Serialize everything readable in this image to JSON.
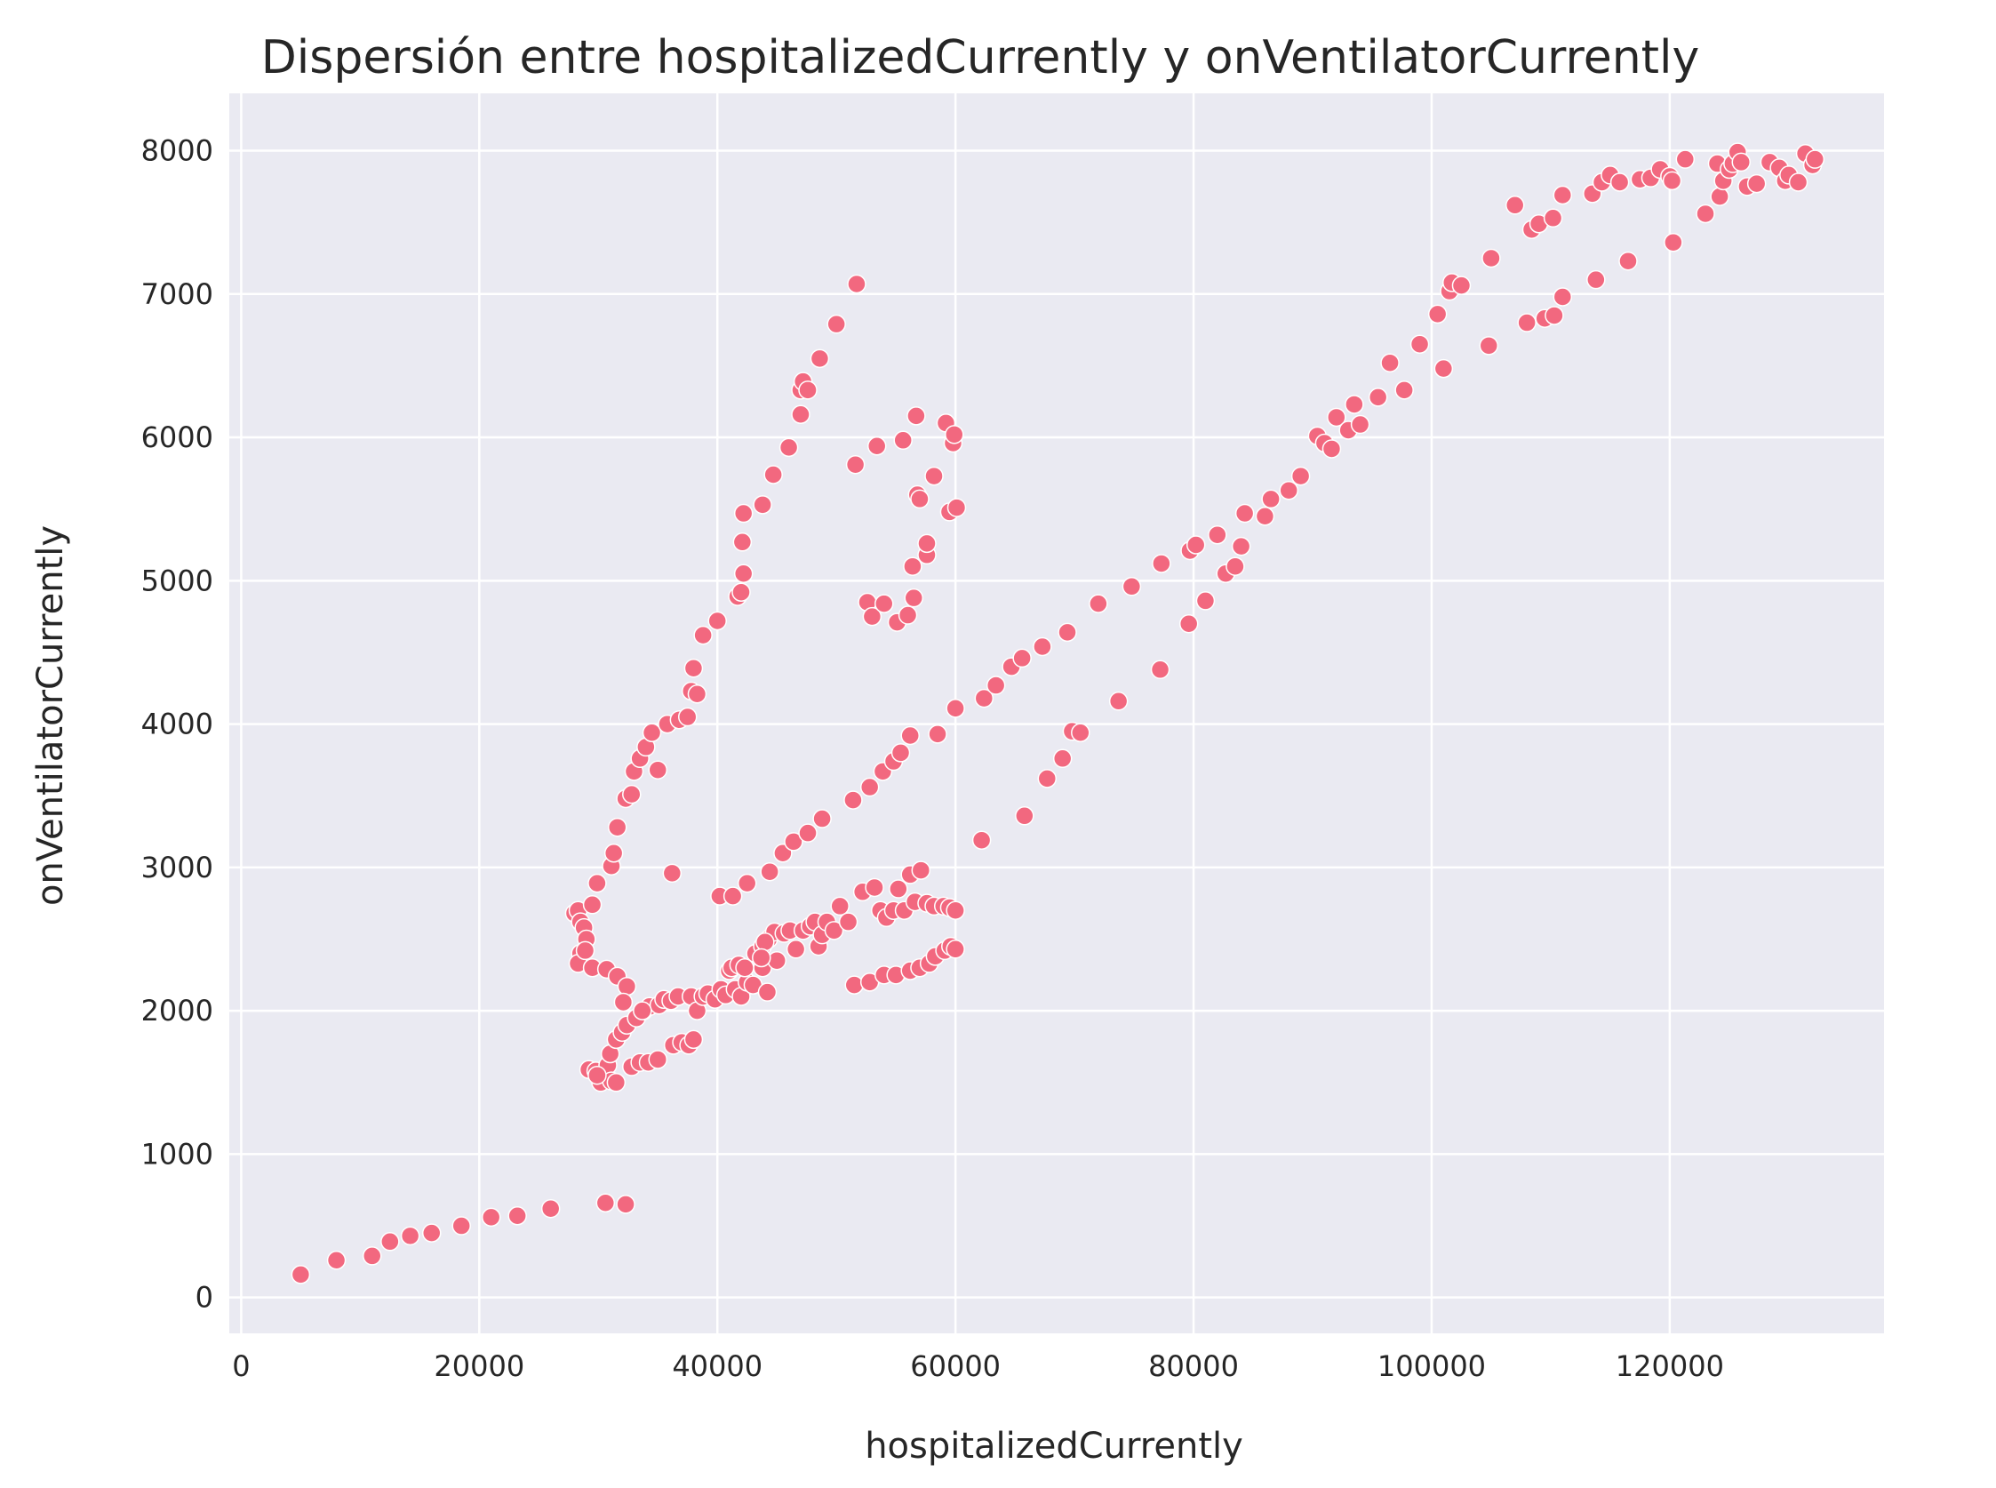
{
  "chart_data": {
    "type": "scatter",
    "title": "Dispersión entre hospitalizedCurrently y onVentilatorCurrently",
    "xlabel": "hospitalizedCurrently",
    "ylabel": "onVentilatorCurrently",
    "xlim": [
      -1000,
      138000
    ],
    "ylim": [
      -250,
      8400
    ],
    "xticks": [
      0,
      20000,
      40000,
      60000,
      80000,
      100000,
      120000
    ],
    "yticks": [
      0,
      1000,
      2000,
      3000,
      4000,
      5000,
      6000,
      7000,
      8000
    ],
    "grid": true,
    "colors": {
      "background": "#eaeaf2",
      "marker": "#f2687f",
      "grid": "#ffffff"
    },
    "points": [
      [
        5000,
        160
      ],
      [
        8000,
        260
      ],
      [
        11000,
        290
      ],
      [
        12500,
        390
      ],
      [
        14200,
        430
      ],
      [
        16000,
        450
      ],
      [
        18500,
        500
      ],
      [
        21000,
        560
      ],
      [
        23200,
        570
      ],
      [
        26000,
        620
      ],
      [
        30600,
        660
      ],
      [
        32300,
        650
      ],
      [
        29200,
        1590
      ],
      [
        29800,
        1580
      ],
      [
        30200,
        1500
      ],
      [
        30500,
        1560
      ],
      [
        30800,
        1620
      ],
      [
        31100,
        1510
      ],
      [
        31500,
        1500
      ],
      [
        29900,
        1550
      ],
      [
        31000,
        1700
      ],
      [
        31500,
        1800
      ],
      [
        32000,
        1850
      ],
      [
        32400,
        1900
      ],
      [
        32800,
        1610
      ],
      [
        33500,
        1640
      ],
      [
        34200,
        1640
      ],
      [
        35000,
        1660
      ],
      [
        33200,
        1950
      ],
      [
        33800,
        2000
      ],
      [
        34300,
        2030
      ],
      [
        35100,
        2040
      ],
      [
        35500,
        2080
      ],
      [
        36100,
        2070
      ],
      [
        36700,
        2100
      ],
      [
        36300,
        1760
      ],
      [
        37000,
        1780
      ],
      [
        37600,
        1760
      ],
      [
        38000,
        1800
      ],
      [
        37800,
        2100
      ],
      [
        38300,
        2000
      ],
      [
        38800,
        2100
      ],
      [
        39200,
        2120
      ],
      [
        39800,
        2080
      ],
      [
        40300,
        2150
      ],
      [
        40700,
        2110
      ],
      [
        41000,
        2280
      ],
      [
        41500,
        2150
      ],
      [
        42000,
        2100
      ],
      [
        42500,
        2200
      ],
      [
        43000,
        2180
      ],
      [
        43800,
        2300
      ],
      [
        44200,
        2130
      ],
      [
        41200,
        2300
      ],
      [
        41800,
        2320
      ],
      [
        42300,
        2300
      ],
      [
        43200,
        2400
      ],
      [
        43800,
        2450
      ],
      [
        44300,
        2500
      ],
      [
        44800,
        2550
      ],
      [
        44000,
        2480
      ],
      [
        45000,
        2350
      ],
      [
        45600,
        2540
      ],
      [
        46100,
        2560
      ],
      [
        46600,
        2430
      ],
      [
        47200,
        2560
      ],
      [
        47800,
        2590
      ],
      [
        48200,
        2620
      ],
      [
        48500,
        2450
      ],
      [
        48800,
        2530
      ],
      [
        49200,
        2620
      ],
      [
        49800,
        2560
      ],
      [
        50300,
        2730
      ],
      [
        51000,
        2620
      ],
      [
        51500,
        2180
      ],
      [
        52200,
        2830
      ],
      [
        52800,
        2200
      ],
      [
        53200,
        2860
      ],
      [
        53700,
        2700
      ],
      [
        54200,
        2650
      ],
      [
        54800,
        2700
      ],
      [
        55200,
        2850
      ],
      [
        55700,
        2700
      ],
      [
        56200,
        2950
      ],
      [
        56600,
        2760
      ],
      [
        57100,
        2980
      ],
      [
        57600,
        2750
      ],
      [
        58200,
        2730
      ],
      [
        59000,
        2730
      ],
      [
        59500,
        2720
      ],
      [
        60000,
        2700
      ],
      [
        54000,
        2250
      ],
      [
        55000,
        2250
      ],
      [
        56200,
        2280
      ],
      [
        57000,
        2300
      ],
      [
        57800,
        2330
      ],
      [
        58300,
        2380
      ],
      [
        59100,
        2420
      ],
      [
        59600,
        2450
      ],
      [
        60000,
        2430
      ],
      [
        28000,
        2680
      ],
      [
        28300,
        2700
      ],
      [
        28500,
        2620
      ],
      [
        28800,
        2580
      ],
      [
        28500,
        2400
      ],
      [
        28300,
        2330
      ],
      [
        29000,
        2500
      ],
      [
        28900,
        2420
      ],
      [
        29500,
        2300
      ],
      [
        29500,
        2740
      ],
      [
        29900,
        2890
      ],
      [
        30700,
        2290
      ],
      [
        31600,
        2240
      ],
      [
        32400,
        2170
      ],
      [
        32100,
        2060
      ],
      [
        33700,
        2000
      ],
      [
        31100,
        3010
      ],
      [
        31300,
        3100
      ],
      [
        31600,
        3280
      ],
      [
        32300,
        3480
      ],
      [
        32800,
        3510
      ],
      [
        33000,
        3670
      ],
      [
        33500,
        3760
      ],
      [
        34000,
        3840
      ],
      [
        34500,
        3940
      ],
      [
        35000,
        3680
      ],
      [
        35800,
        4000
      ],
      [
        36200,
        2960
      ],
      [
        36800,
        4030
      ],
      [
        37500,
        4050
      ],
      [
        37800,
        4230
      ],
      [
        38000,
        4390
      ],
      [
        38300,
        4210
      ],
      [
        38800,
        4620
      ],
      [
        40000,
        4720
      ],
      [
        40200,
        2800
      ],
      [
        41300,
        2800
      ],
      [
        41700,
        4890
      ],
      [
        42000,
        4920
      ],
      [
        42200,
        5050
      ],
      [
        42100,
        5270
      ],
      [
        42200,
        5470
      ],
      [
        42500,
        2890
      ],
      [
        43800,
        5530
      ],
      [
        43700,
        2370
      ],
      [
        44400,
        2970
      ],
      [
        44700,
        5740
      ],
      [
        45500,
        3100
      ],
      [
        46000,
        5930
      ],
      [
        46400,
        3180
      ],
      [
        47000,
        6330
      ],
      [
        47200,
        6390
      ],
      [
        47000,
        6160
      ],
      [
        47600,
        6330
      ],
      [
        47600,
        3240
      ],
      [
        48600,
        6550
      ],
      [
        48800,
        3340
      ],
      [
        50000,
        6790
      ],
      [
        51400,
        3470
      ],
      [
        51700,
        7070
      ],
      [
        51600,
        5810
      ],
      [
        52800,
        3560
      ],
      [
        52600,
        4850
      ],
      [
        53000,
        4750
      ],
      [
        53400,
        5940
      ],
      [
        53900,
        3670
      ],
      [
        54000,
        4840
      ],
      [
        54800,
        3740
      ],
      [
        55100,
        4710
      ],
      [
        55400,
        3800
      ],
      [
        55600,
        5980
      ],
      [
        56000,
        4760
      ],
      [
        56200,
        3920
      ],
      [
        56400,
        5100
      ],
      [
        56500,
        4880
      ],
      [
        56700,
        6150
      ],
      [
        56800,
        5600
      ],
      [
        57000,
        5570
      ],
      [
        57600,
        5180
      ],
      [
        57600,
        5260
      ],
      [
        58200,
        5730
      ],
      [
        58500,
        3930
      ],
      [
        59200,
        6100
      ],
      [
        59500,
        5480
      ],
      [
        59800,
        5960
      ],
      [
        59900,
        6020
      ],
      [
        60100,
        5510
      ],
      [
        60000,
        4110
      ],
      [
        62200,
        3190
      ],
      [
        62400,
        4180
      ],
      [
        63400,
        4270
      ],
      [
        64700,
        4400
      ],
      [
        65600,
        4460
      ],
      [
        65800,
        3360
      ],
      [
        67300,
        4540
      ],
      [
        67700,
        3620
      ],
      [
        69000,
        3760
      ],
      [
        69400,
        4640
      ],
      [
        69800,
        3950
      ],
      [
        70500,
        3940
      ],
      [
        72000,
        4840
      ],
      [
        73700,
        4160
      ],
      [
        74800,
        4960
      ],
      [
        77200,
        4380
      ],
      [
        77300,
        5120
      ],
      [
        79600,
        4700
      ],
      [
        79700,
        5210
      ],
      [
        80200,
        5250
      ],
      [
        81000,
        4860
      ],
      [
        82000,
        5320
      ],
      [
        82700,
        5050
      ],
      [
        83500,
        5100
      ],
      [
        84000,
        5240
      ],
      [
        84300,
        5470
      ],
      [
        86000,
        5450
      ],
      [
        86500,
        5570
      ],
      [
        88000,
        5630
      ],
      [
        89000,
        5730
      ],
      [
        90400,
        6010
      ],
      [
        91000,
        5960
      ],
      [
        91600,
        5920
      ],
      [
        92000,
        6140
      ],
      [
        93000,
        6050
      ],
      [
        93500,
        6230
      ],
      [
        94000,
        6090
      ],
      [
        95500,
        6280
      ],
      [
        96500,
        6520
      ],
      [
        97700,
        6330
      ],
      [
        99000,
        6650
      ],
      [
        100500,
        6860
      ],
      [
        101000,
        6480
      ],
      [
        101500,
        7020
      ],
      [
        101700,
        7080
      ],
      [
        102500,
        7060
      ],
      [
        104800,
        6640
      ],
      [
        105000,
        7250
      ],
      [
        107000,
        7620
      ],
      [
        108000,
        6800
      ],
      [
        108400,
        7450
      ],
      [
        109000,
        7490
      ],
      [
        109500,
        6830
      ],
      [
        110300,
        6850
      ],
      [
        110200,
        7530
      ],
      [
        111000,
        6980
      ],
      [
        111000,
        7690
      ],
      [
        113500,
        7700
      ],
      [
        113800,
        7100
      ],
      [
        114300,
        7780
      ],
      [
        115000,
        7830
      ],
      [
        115800,
        7780
      ],
      [
        116500,
        7230
      ],
      [
        117500,
        7800
      ],
      [
        118400,
        7810
      ],
      [
        119200,
        7870
      ],
      [
        120000,
        7820
      ],
      [
        120200,
        7790
      ],
      [
        120300,
        7360
      ],
      [
        121300,
        7940
      ],
      [
        123000,
        7560
      ],
      [
        124000,
        7910
      ],
      [
        124200,
        7680
      ],
      [
        124500,
        7790
      ],
      [
        125000,
        7870
      ],
      [
        125300,
        7910
      ],
      [
        125700,
        7990
      ],
      [
        126000,
        7920
      ],
      [
        126500,
        7750
      ],
      [
        127300,
        7770
      ],
      [
        128400,
        7920
      ],
      [
        129200,
        7880
      ],
      [
        129700,
        7790
      ],
      [
        130000,
        7830
      ],
      [
        130800,
        7780
      ],
      [
        131400,
        7980
      ],
      [
        132000,
        7900
      ],
      [
        132200,
        7940
      ]
    ]
  }
}
